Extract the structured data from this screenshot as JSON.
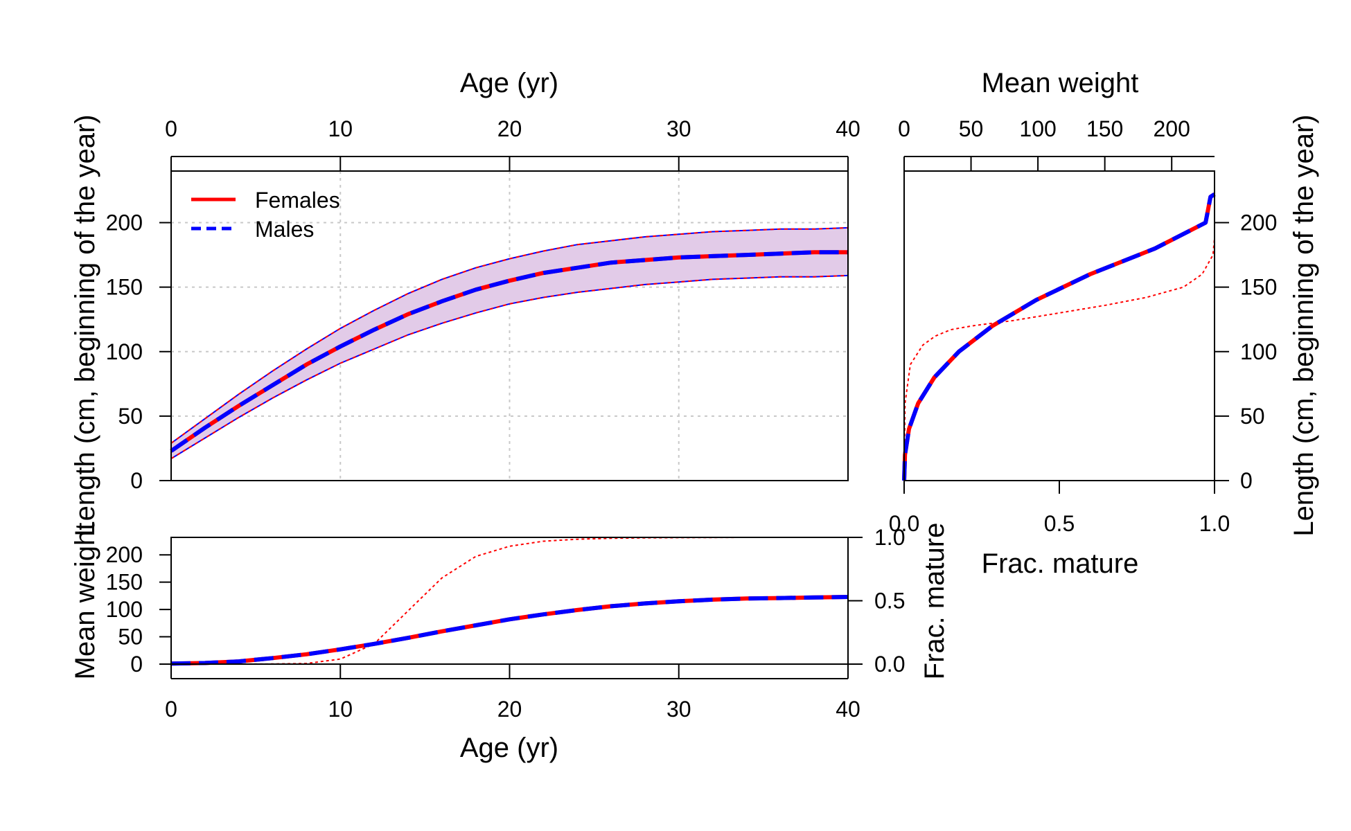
{
  "colors": {
    "females": "#ff0000",
    "males": "#0000ff",
    "band": "#e2cbe8",
    "grid": "#c8c8c8"
  },
  "chart_data": [
    {
      "id": "growth",
      "type": "line",
      "xlabel": "Age (yr)",
      "ylabel": "Length (cm, beginning of the year)",
      "xlim": [
        0,
        40
      ],
      "ylim": [
        0,
        240
      ],
      "xticks": [
        "0",
        "10",
        "20",
        "30",
        "40"
      ],
      "yticks": [
        "0",
        "50",
        "100",
        "150",
        "200"
      ],
      "grid": true,
      "legend": {
        "position": "top-left",
        "entries": [
          "Females",
          "Males"
        ]
      },
      "x": [
        0,
        2,
        4,
        6,
        8,
        10,
        12,
        14,
        16,
        18,
        20,
        22,
        24,
        26,
        28,
        30,
        32,
        34,
        36,
        38,
        40
      ],
      "series": [
        {
          "name": "Females",
          "style": "solid",
          "mean": [
            23,
            41,
            58,
            74,
            90,
            104,
            117,
            129,
            139,
            148,
            155,
            161,
            165,
            169,
            171,
            173,
            174,
            175,
            176,
            177,
            177
          ],
          "upper": [
            29,
            48,
            67,
            85,
            102,
            118,
            132,
            145,
            156,
            165,
            172,
            178,
            183,
            186,
            189,
            191,
            193,
            194,
            195,
            195,
            196
          ],
          "lower": [
            17,
            33,
            49,
            64,
            78,
            91,
            102,
            113,
            122,
            130,
            137,
            142,
            146,
            149,
            152,
            154,
            156,
            157,
            158,
            158,
            159
          ]
        },
        {
          "name": "Males",
          "style": "dashed",
          "mean": [
            23,
            41,
            58,
            74,
            90,
            104,
            117,
            129,
            139,
            148,
            155,
            161,
            165,
            169,
            171,
            173,
            174,
            175,
            176,
            177,
            177
          ],
          "upper": [
            29,
            48,
            67,
            85,
            102,
            118,
            132,
            145,
            156,
            165,
            172,
            178,
            183,
            186,
            189,
            191,
            193,
            194,
            195,
            195,
            196
          ],
          "lower": [
            17,
            33,
            49,
            64,
            78,
            91,
            102,
            113,
            122,
            130,
            137,
            142,
            146,
            149,
            152,
            154,
            156,
            157,
            158,
            158,
            159
          ]
        }
      ]
    },
    {
      "id": "length-weight",
      "type": "line",
      "xlabel": "Mean weight",
      "ylabel": "Length (cm, beginning of the year)",
      "xlim": [
        0,
        232
      ],
      "ylim": [
        0,
        240
      ],
      "xticks": [
        "0",
        "50",
        "100",
        "150",
        "200"
      ],
      "yticks": [
        "0",
        "50",
        "100",
        "150",
        "200"
      ],
      "secondary_x": {
        "label": "Frac. mature",
        "lim": [
          0,
          1
        ],
        "ticks": [
          "0.0",
          "0.5",
          "1.0"
        ]
      },
      "weight_curve": {
        "length": [
          0,
          20,
          40,
          60,
          80,
          100,
          120,
          140,
          160,
          180,
          200,
          220,
          222
        ],
        "weight": [
          0,
          0.6,
          3.6,
          10.5,
          22.6,
          40.9,
          66.1,
          98.6,
          139,
          187.5,
          225.3,
          229,
          232
        ]
      },
      "maturity_curve": {
        "length": [
          0,
          60,
          90,
          105,
          112,
          117,
          120,
          124,
          130,
          136,
          142,
          150,
          160,
          175,
          188
        ],
        "frac": [
          0,
          0.003,
          0.02,
          0.06,
          0.1,
          0.15,
          0.22,
          0.35,
          0.5,
          0.65,
          0.78,
          0.9,
          0.96,
          0.995,
          1.0
        ]
      }
    },
    {
      "id": "weight-maturity",
      "type": "line",
      "xlabel": "Age (yr)",
      "ylabel": "Mean weight",
      "xlim": [
        0,
        40
      ],
      "ylim": [
        0,
        232
      ],
      "xticks": [
        "0",
        "10",
        "20",
        "30",
        "40"
      ],
      "yticks": [
        "0",
        "50",
        "100",
        "150",
        "200"
      ],
      "secondary_y": {
        "label": "Frac. mature",
        "lim": [
          0,
          1
        ],
        "ticks": [
          "0.0",
          "0.5",
          "1.0"
        ]
      },
      "x": [
        0,
        2,
        4,
        6,
        8,
        10,
        12,
        14,
        16,
        18,
        20,
        22,
        24,
        26,
        28,
        30,
        32,
        34,
        36,
        38,
        40
      ],
      "weight": [
        1,
        2,
        5,
        11,
        18,
        27,
        37,
        48,
        60,
        71,
        82,
        91,
        99,
        106,
        111,
        115,
        118,
        120,
        121,
        122,
        123
      ],
      "frac_mature": [
        0,
        0,
        0,
        0.001,
        0.005,
        0.04,
        0.16,
        0.42,
        0.68,
        0.85,
        0.93,
        0.97,
        0.985,
        0.993,
        0.996,
        0.998,
        0.999,
        1,
        1,
        1,
        1
      ]
    }
  ]
}
